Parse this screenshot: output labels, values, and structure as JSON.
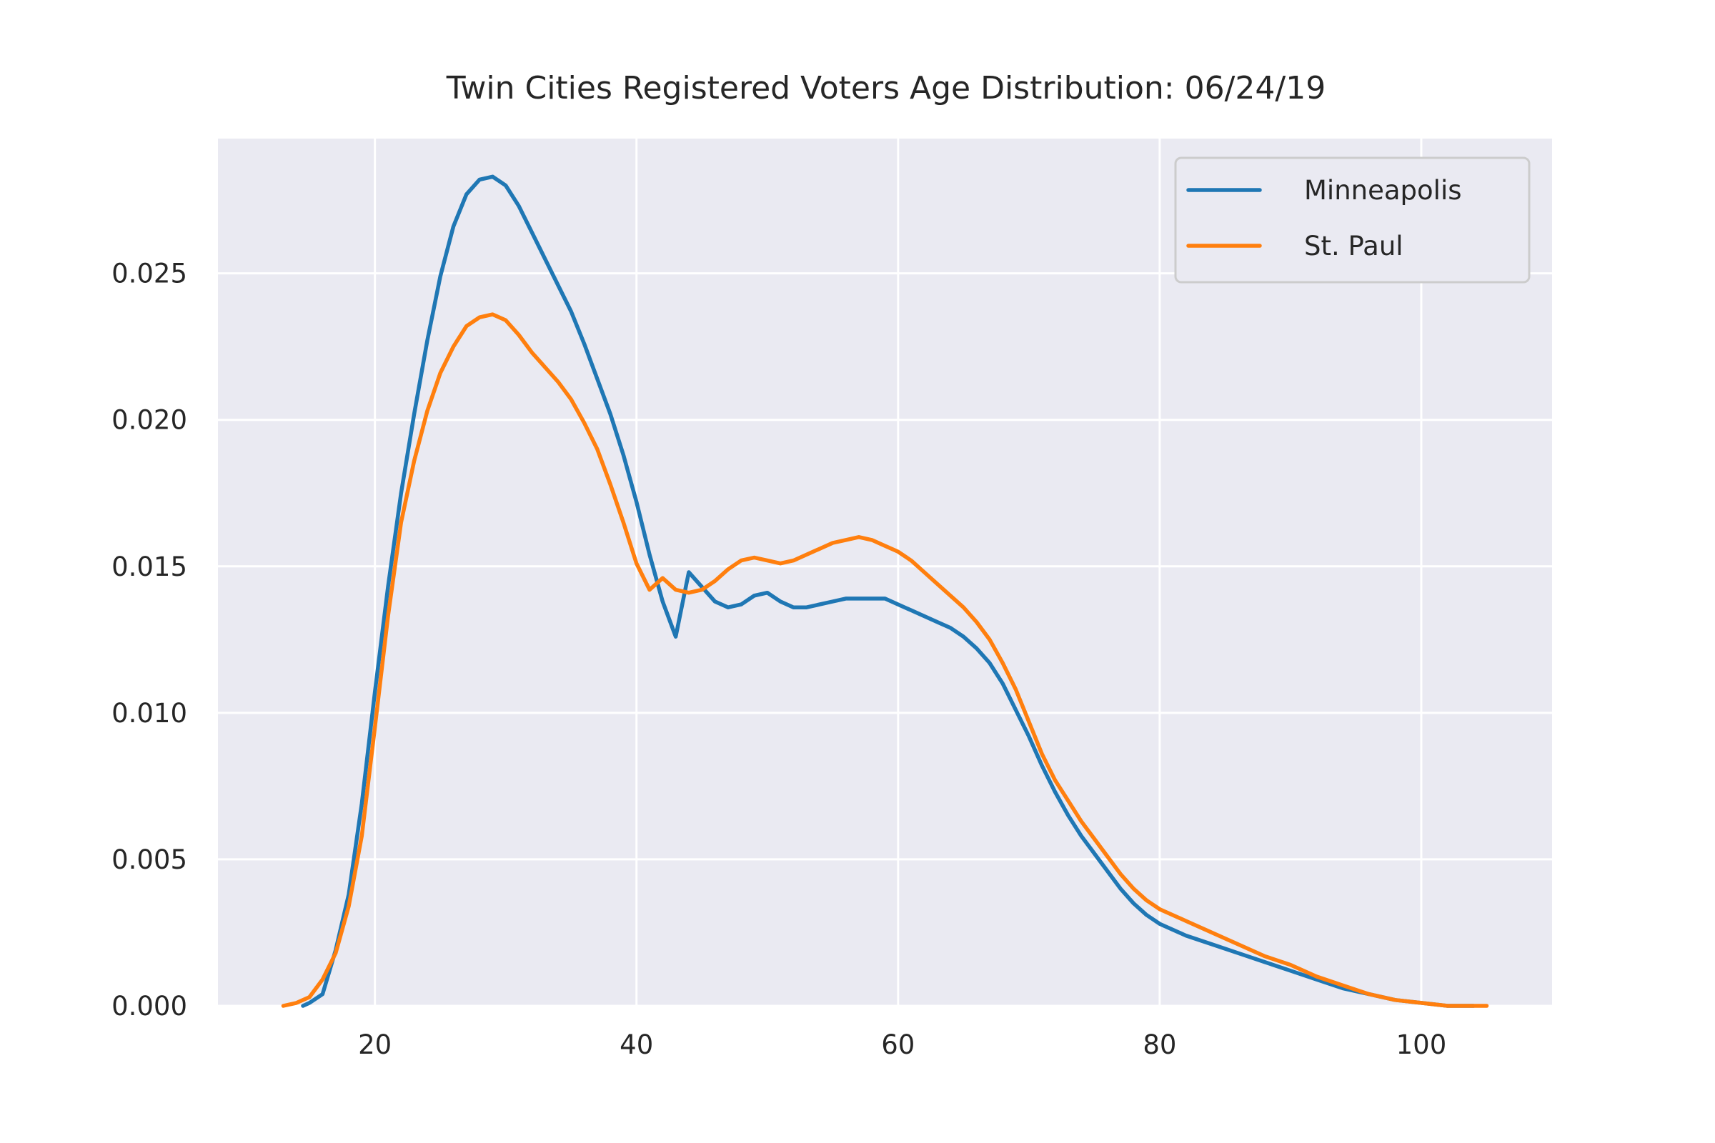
{
  "chart_data": {
    "type": "line",
    "title": "Twin Cities Registered Voters Age Distribution: 06/24/19",
    "xlabel": "",
    "ylabel": "",
    "xlim": [
      8,
      110
    ],
    "ylim": [
      0,
      0.0296
    ],
    "xticks": [
      20,
      40,
      60,
      80,
      100
    ],
    "xtick_labels": [
      "20",
      "40",
      "60",
      "80",
      "100"
    ],
    "yticks": [
      0,
      0.005,
      0.01,
      0.015,
      0.02,
      0.025
    ],
    "ytick_labels": [
      "0.000",
      "0.005",
      "0.010",
      "0.015",
      "0.020",
      "0.025"
    ],
    "grid": true,
    "legend_position": "top-right",
    "series": [
      {
        "name": "Minneapolis",
        "color": "#1f77b4",
        "points": [
          [
            14.5,
            0
          ],
          [
            15,
            0.0001
          ],
          [
            16,
            0.0004
          ],
          [
            17,
            0.0019
          ],
          [
            18,
            0.0038
          ],
          [
            19,
            0.0069
          ],
          [
            20,
            0.0107
          ],
          [
            21,
            0.0143
          ],
          [
            22,
            0.0175
          ],
          [
            23,
            0.0202
          ],
          [
            24,
            0.0227
          ],
          [
            25,
            0.0249
          ],
          [
            26,
            0.0266
          ],
          [
            27,
            0.0277
          ],
          [
            28,
            0.0282
          ],
          [
            29,
            0.0283
          ],
          [
            30,
            0.028
          ],
          [
            31,
            0.0273
          ],
          [
            32,
            0.0264
          ],
          [
            33,
            0.0255
          ],
          [
            34,
            0.0246
          ],
          [
            35,
            0.0237
          ],
          [
            36,
            0.0226
          ],
          [
            37,
            0.0214
          ],
          [
            38,
            0.0202
          ],
          [
            39,
            0.0188
          ],
          [
            40,
            0.0172
          ],
          [
            41,
            0.0154
          ],
          [
            42,
            0.0138
          ],
          [
            43,
            0.0126
          ],
          [
            44,
            0.0148
          ],
          [
            45,
            0.0143
          ],
          [
            46,
            0.0138
          ],
          [
            47,
            0.0136
          ],
          [
            48,
            0.0137
          ],
          [
            49,
            0.014
          ],
          [
            50,
            0.0141
          ],
          [
            51,
            0.0138
          ],
          [
            52,
            0.0136
          ],
          [
            53,
            0.0136
          ],
          [
            54,
            0.0137
          ],
          [
            55,
            0.0138
          ],
          [
            56,
            0.0139
          ],
          [
            57,
            0.0139
          ],
          [
            58,
            0.0139
          ],
          [
            59,
            0.0139
          ],
          [
            60,
            0.0137
          ],
          [
            61,
            0.0135
          ],
          [
            62,
            0.0133
          ],
          [
            63,
            0.0131
          ],
          [
            64,
            0.0129
          ],
          [
            65,
            0.0126
          ],
          [
            66,
            0.0122
          ],
          [
            67,
            0.0117
          ],
          [
            68,
            0.011
          ],
          [
            69,
            0.0101
          ],
          [
            70,
            0.0092
          ],
          [
            71,
            0.0082
          ],
          [
            72,
            0.0073
          ],
          [
            73,
            0.0065
          ],
          [
            74,
            0.0058
          ],
          [
            75,
            0.0052
          ],
          [
            76,
            0.0046
          ],
          [
            77,
            0.004
          ],
          [
            78,
            0.0035
          ],
          [
            79,
            0.0031
          ],
          [
            80,
            0.0028
          ],
          [
            82,
            0.0024
          ],
          [
            84,
            0.0021
          ],
          [
            86,
            0.0018
          ],
          [
            88,
            0.0015
          ],
          [
            90,
            0.0012
          ],
          [
            92,
            0.0009
          ],
          [
            94,
            0.0006
          ],
          [
            96,
            0.0004
          ],
          [
            98,
            0.0002
          ],
          [
            100,
            0.0001
          ],
          [
            102,
            0
          ],
          [
            104,
            0
          ]
        ]
      },
      {
        "name": "St. Paul",
        "color": "#ff7f0e",
        "points": [
          [
            13,
            0
          ],
          [
            14,
            0.0001
          ],
          [
            15,
            0.0003
          ],
          [
            16,
            0.0009
          ],
          [
            17,
            0.0018
          ],
          [
            18,
            0.0034
          ],
          [
            19,
            0.0058
          ],
          [
            20,
            0.0095
          ],
          [
            21,
            0.0133
          ],
          [
            22,
            0.0165
          ],
          [
            23,
            0.0186
          ],
          [
            24,
            0.0203
          ],
          [
            25,
            0.0216
          ],
          [
            26,
            0.0225
          ],
          [
            27,
            0.0232
          ],
          [
            28,
            0.0235
          ],
          [
            29,
            0.0236
          ],
          [
            30,
            0.0234
          ],
          [
            31,
            0.0229
          ],
          [
            32,
            0.0223
          ],
          [
            33,
            0.0218
          ],
          [
            34,
            0.0213
          ],
          [
            35,
            0.0207
          ],
          [
            36,
            0.0199
          ],
          [
            37,
            0.019
          ],
          [
            38,
            0.0178
          ],
          [
            39,
            0.0165
          ],
          [
            40,
            0.0151
          ],
          [
            41,
            0.0142
          ],
          [
            42,
            0.0146
          ],
          [
            43,
            0.0142
          ],
          [
            44,
            0.0141
          ],
          [
            45,
            0.0142
          ],
          [
            46,
            0.0145
          ],
          [
            47,
            0.0149
          ],
          [
            48,
            0.0152
          ],
          [
            49,
            0.0153
          ],
          [
            50,
            0.0152
          ],
          [
            51,
            0.0151
          ],
          [
            52,
            0.0152
          ],
          [
            53,
            0.0154
          ],
          [
            54,
            0.0156
          ],
          [
            55,
            0.0158
          ],
          [
            56,
            0.0159
          ],
          [
            57,
            0.016
          ],
          [
            58,
            0.0159
          ],
          [
            59,
            0.0157
          ],
          [
            60,
            0.0155
          ],
          [
            61,
            0.0152
          ],
          [
            62,
            0.0148
          ],
          [
            63,
            0.0144
          ],
          [
            64,
            0.014
          ],
          [
            65,
            0.0136
          ],
          [
            66,
            0.0131
          ],
          [
            67,
            0.0125
          ],
          [
            68,
            0.0117
          ],
          [
            69,
            0.0108
          ],
          [
            70,
            0.0097
          ],
          [
            71,
            0.0086
          ],
          [
            72,
            0.0077
          ],
          [
            73,
            0.007
          ],
          [
            74,
            0.0063
          ],
          [
            75,
            0.0057
          ],
          [
            76,
            0.0051
          ],
          [
            77,
            0.0045
          ],
          [
            78,
            0.004
          ],
          [
            79,
            0.0036
          ],
          [
            80,
            0.0033
          ],
          [
            82,
            0.0029
          ],
          [
            84,
            0.0025
          ],
          [
            86,
            0.0021
          ],
          [
            88,
            0.0017
          ],
          [
            90,
            0.0014
          ],
          [
            92,
            0.001
          ],
          [
            94,
            0.0007
          ],
          [
            96,
            0.0004
          ],
          [
            98,
            0.0002
          ],
          [
            100,
            0.0001
          ],
          [
            102,
            0
          ],
          [
            105,
            0
          ]
        ]
      }
    ]
  }
}
